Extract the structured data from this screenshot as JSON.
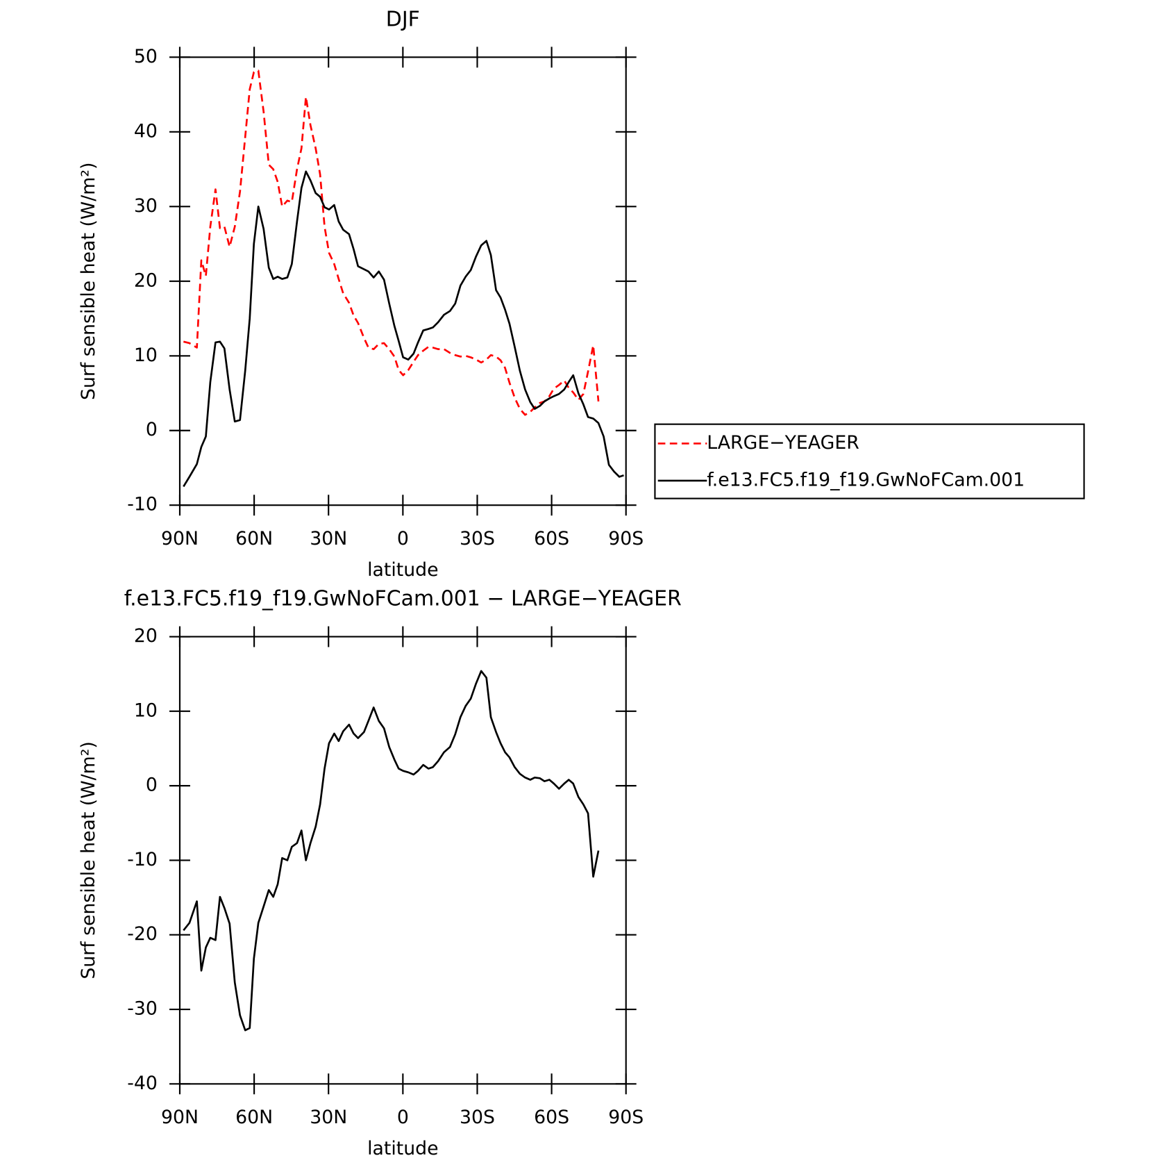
{
  "chart_data": [
    {
      "type": "line",
      "title": "DJF",
      "xlabel": "latitude",
      "ylabel": "Surf sensible heat (W/m²)",
      "x": [
        88.5,
        86.1,
        83.1,
        81.3,
        79.5,
        77.7,
        75.6,
        73.8,
        72.0,
        69.9,
        67.8,
        65.7,
        63.6,
        61.8,
        60.1,
        58.3,
        56.2,
        54.1,
        52.3,
        50.5,
        48.7,
        46.6,
        44.8,
        42.7,
        40.9,
        39.1,
        37.3,
        35.2,
        33.4,
        31.6,
        29.8,
        27.7,
        25.9,
        24.1,
        21.7,
        19.9,
        18.1,
        15.7,
        13.9,
        11.8,
        9.7,
        7.6,
        5.5,
        3.4,
        1.7,
        -0.1,
        -2.2,
        -4.3,
        -6.1,
        -8.2,
        -10.3,
        -12.1,
        -14.2,
        -16.6,
        -19.0,
        -21.1,
        -23.2,
        -25.3,
        -27.4,
        -29.5,
        -31.6,
        -33.7,
        -35.5,
        -37.6,
        -39.4,
        -41.2,
        -43.0,
        -45.1,
        -47.2,
        -49.3,
        -51.4,
        -53.2,
        -55.3,
        -57.1,
        -59.1,
        -60.9,
        -63.0,
        -65.1,
        -66.9,
        -68.7,
        -70.8,
        -72.8,
        -74.7,
        -76.8,
        -78.9,
        -81.0,
        -83.1,
        -85.2,
        -87.3,
        -89.1
      ],
      "series": [
        {
          "name": "LARGE−YEAGER",
          "color": "#ff0000",
          "dash": true,
          "values": [
            11.9,
            11.7,
            11.1,
            22.8,
            20.7,
            27.3,
            32.3,
            27.1,
            27.3,
            24.6,
            27.3,
            32.0,
            39.3,
            45.7,
            48.0,
            48.2,
            42.7,
            35.6,
            35.0,
            33.3,
            30.0,
            30.8,
            30.6,
            35.0,
            37.8,
            44.7,
            40.9,
            37.8,
            34.3,
            27.3,
            23.8,
            22.3,
            20.3,
            18.4,
            17.1,
            15.4,
            14.4,
            12.4,
            11.1,
            10.9,
            11.6,
            11.7,
            10.9,
            9.9,
            8.1,
            7.4,
            8.1,
            9.2,
            10.1,
            10.7,
            11.2,
            11.1,
            10.9,
            10.9,
            10.4,
            10.1,
            9.9,
            10.0,
            9.8,
            9.5,
            9.1,
            9.5,
            10.1,
            9.9,
            9.4,
            8.4,
            6.4,
            4.4,
            2.9,
            2.1,
            2.5,
            3.1,
            3.7,
            3.9,
            4.6,
            5.6,
            6.1,
            6.7,
            5.7,
            5.1,
            4.1,
            4.9,
            7.9,
            11.4,
            3.9,
            null,
            null,
            null,
            null,
            null
          ]
        },
        {
          "name": "f.e13.FC5.f19_f19.GwNoFCam.001",
          "color": "#000000",
          "dash": false,
          "values": [
            -7.5,
            -6.2,
            -4.5,
            -2.2,
            -0.8,
            6.5,
            11.8,
            11.9,
            11.0,
            5.5,
            1.2,
            1.4,
            8.0,
            15.0,
            25.0,
            30.0,
            27.0,
            21.8,
            20.3,
            20.6,
            20.3,
            20.5,
            22.3,
            28.0,
            32.5,
            34.7,
            33.5,
            31.8,
            31.3,
            29.9,
            29.6,
            30.2,
            28.0,
            26.9,
            26.3,
            24.3,
            22.0,
            21.6,
            21.3,
            20.5,
            21.3,
            20.2,
            17.0,
            14.0,
            12.0,
            9.8,
            9.5,
            10.3,
            11.8,
            13.4,
            13.6,
            13.8,
            14.5,
            15.5,
            16.0,
            17.0,
            19.4,
            20.6,
            21.5,
            23.3,
            24.8,
            25.4,
            23.5,
            18.8,
            17.8,
            16.2,
            14.3,
            11.2,
            8.0,
            5.5,
            3.8,
            2.9,
            3.3,
            3.9,
            4.3,
            4.6,
            4.9,
            5.5,
            6.5,
            7.4,
            5.0,
            3.5,
            1.8,
            1.6,
            1.0,
            -0.8,
            -4.6,
            -5.5,
            -6.2,
            -6.0
          ]
        }
      ],
      "xlim": [
        90,
        -90
      ],
      "xticks": [
        {
          "value": 90,
          "label": "90N"
        },
        {
          "value": 60,
          "label": "60N"
        },
        {
          "value": 30,
          "label": "30N"
        },
        0,
        {
          "value": -30,
          "label": "30S"
        },
        {
          "value": -60,
          "label": "60S"
        },
        {
          "value": -90,
          "label": "90S"
        }
      ],
      "ylim": [
        -10,
        50
      ],
      "yticks": [
        -10,
        0,
        10,
        20,
        30,
        40,
        50
      ],
      "legend": "right"
    },
    {
      "type": "line",
      "title": "f.e13.FC5.f19_f19.GwNoFCam.001 − LARGE−YEAGER",
      "xlabel": "latitude",
      "ylabel": "Surf sensible heat (W/m²)",
      "x": [
        88.5,
        86.1,
        83.1,
        81.3,
        79.5,
        77.7,
        75.6,
        73.8,
        72.0,
        69.9,
        67.8,
        65.7,
        63.6,
        61.8,
        60.1,
        58.3,
        56.2,
        54.1,
        52.3,
        50.5,
        48.7,
        46.6,
        44.8,
        42.7,
        40.9,
        39.1,
        37.3,
        35.2,
        33.4,
        31.6,
        29.8,
        27.7,
        25.9,
        24.1,
        21.7,
        19.9,
        18.1,
        15.7,
        13.9,
        11.8,
        9.7,
        7.6,
        5.5,
        3.4,
        1.7,
        -0.1,
        -2.2,
        -4.3,
        -6.1,
        -8.2,
        -10.3,
        -12.1,
        -14.2,
        -16.6,
        -19.0,
        -21.1,
        -23.2,
        -25.3,
        -27.4,
        -29.5,
        -31.6,
        -33.7,
        -35.5,
        -37.6,
        -39.4,
        -41.2,
        -43.0,
        -45.1,
        -47.2,
        -49.3,
        -51.4,
        -53.2,
        -55.3,
        -57.1,
        -59.1,
        -60.9,
        -63.0,
        -65.1,
        -66.9,
        -68.7,
        -70.8,
        -72.8,
        -74.7,
        -76.8,
        -78.9
      ],
      "values": [
        -19.4,
        -18.4,
        -15.5,
        -24.8,
        -21.7,
        -20.4,
        -20.7,
        -14.9,
        -16.4,
        -18.5,
        -26.4,
        -30.8,
        -32.8,
        -32.5,
        -23.2,
        -18.4,
        -16.2,
        -14.0,
        -14.9,
        -13.2,
        -9.7,
        -10.0,
        -8.2,
        -7.7,
        -6.0,
        -10.0,
        -7.7,
        -5.5,
        -2.5,
        2.3,
        5.7,
        7.0,
        6.0,
        7.3,
        8.2,
        7.0,
        6.4,
        7.2,
        8.7,
        10.5,
        8.7,
        7.7,
        5.2,
        3.5,
        2.3,
        2.0,
        1.8,
        1.5,
        2.0,
        2.8,
        2.3,
        2.5,
        3.3,
        4.5,
        5.2,
        6.9,
        9.2,
        10.7,
        11.7,
        13.7,
        15.4,
        14.5,
        9.2,
        7.2,
        5.7,
        4.5,
        3.8,
        2.5,
        1.6,
        1.1,
        0.8,
        1.1,
        1.0,
        0.6,
        0.8,
        0.3,
        -0.4,
        0.3,
        0.8,
        0.3,
        -1.5,
        -2.5,
        -3.7,
        -12.2,
        -8.7
      ],
      "color": "#000000",
      "xlim": [
        90,
        -90
      ],
      "xticks": [
        {
          "value": 90,
          "label": "90N"
        },
        {
          "value": 60,
          "label": "60N"
        },
        {
          "value": 30,
          "label": "30N"
        },
        0,
        {
          "value": -30,
          "label": "30S"
        },
        {
          "value": -60,
          "label": "60S"
        },
        {
          "value": -90,
          "label": "90S"
        }
      ],
      "ylim": [
        -40,
        20
      ],
      "yticks": [
        -40,
        -30,
        -20,
        -10,
        0,
        10,
        20
      ]
    }
  ]
}
